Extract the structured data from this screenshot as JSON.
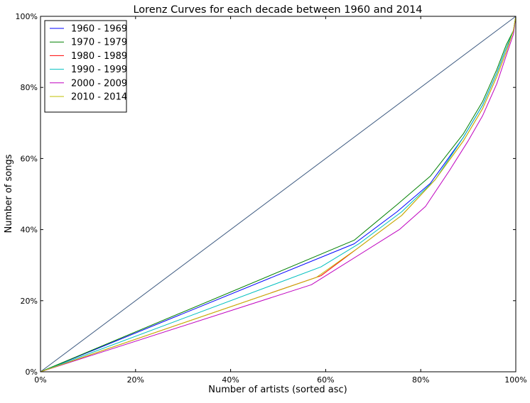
{
  "chart_data": {
    "type": "line",
    "title": "Lorenz Curves for each decade between 1960 and 2014",
    "xlabel": "Number of artists (sorted asc)",
    "ylabel": "Number of songs",
    "xlim": [
      0,
      100
    ],
    "ylim": [
      0,
      100
    ],
    "x_ticks": [
      "0%",
      "20%",
      "40%",
      "60%",
      "80%",
      "100%"
    ],
    "y_ticks": [
      "0%",
      "20%",
      "40%",
      "60%",
      "80%",
      "100%"
    ],
    "grid": false,
    "legend_position": "top-left",
    "equality_line": {
      "color": "#3d5a80",
      "x": [
        0,
        100
      ],
      "y": [
        0,
        100
      ]
    },
    "series": [
      {
        "name": "1960 - 1969",
        "color": "#0000ff",
        "x": [
          0,
          66,
          75,
          82,
          89,
          93,
          96,
          98,
          99.5,
          100
        ],
        "y": [
          0,
          36,
          45,
          53,
          66,
          75,
          84,
          91,
          96,
          100
        ]
      },
      {
        "name": "1970 - 1979",
        "color": "#008000",
        "x": [
          0,
          66,
          75,
          82,
          89,
          93,
          96,
          98,
          99.5,
          100
        ],
        "y": [
          0,
          37,
          47,
          55,
          67,
          76,
          85,
          92,
          96,
          100
        ]
      },
      {
        "name": "1980 - 1989",
        "color": "#ff0000",
        "x": [
          0,
          59,
          67,
          76,
          83,
          89,
          93,
          96,
          98,
          99.5,
          100
        ],
        "y": [
          0,
          27,
          35,
          44,
          54,
          65,
          74,
          83,
          90,
          96,
          100
        ]
      },
      {
        "name": "1990 - 1999",
        "color": "#00bfbf",
        "x": [
          0,
          59,
          67,
          76,
          83,
          89,
          93,
          96,
          98,
          99.5,
          100
        ],
        "y": [
          0,
          29.5,
          36,
          45,
          54,
          66,
          75,
          84,
          91,
          96,
          100
        ]
      },
      {
        "name": "2000 - 2009",
        "color": "#bf00bf",
        "x": [
          0,
          57,
          75.5,
          81,
          86,
          90,
          93,
          96,
          98,
          99.5,
          100
        ],
        "y": [
          0,
          24.5,
          40,
          46.5,
          56.5,
          65,
          72,
          81,
          89,
          95,
          100
        ]
      },
      {
        "name": "2010 - 2014",
        "color": "#bfbf00",
        "x": [
          0,
          58,
          67,
          76,
          83,
          89,
          93,
          96,
          98,
          99.5,
          100
        ],
        "y": [
          0,
          26.5,
          35,
          44,
          54,
          65,
          74,
          83,
          90,
          96,
          100
        ]
      }
    ]
  }
}
